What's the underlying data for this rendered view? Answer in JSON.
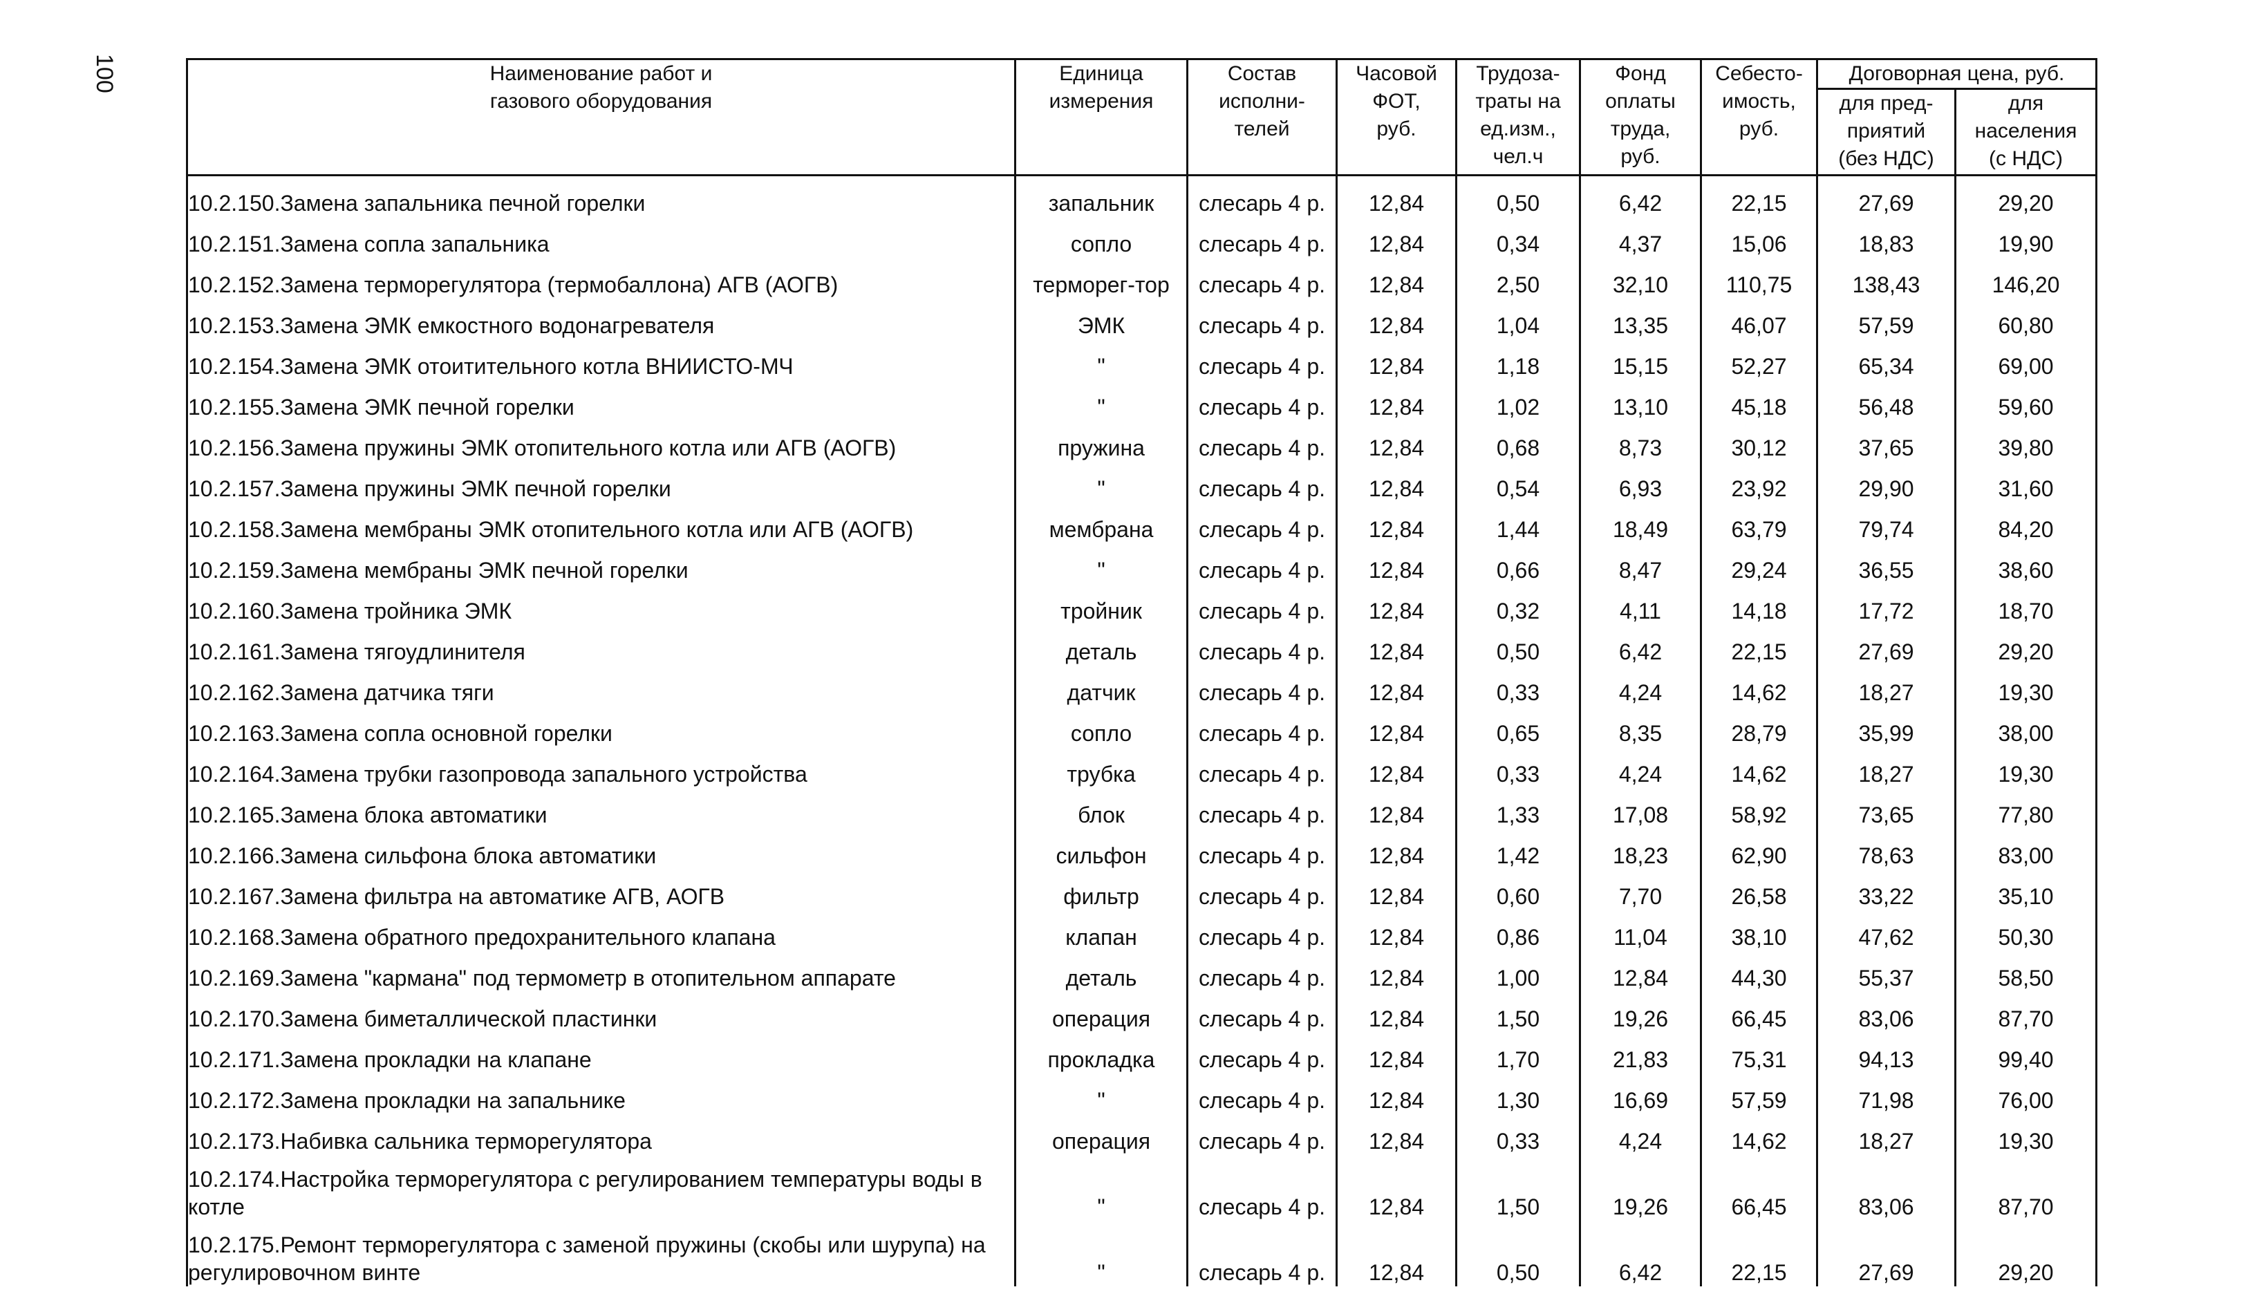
{
  "page_number": "100",
  "table": {
    "group_header": "Договорная цена, руб.",
    "headers": [
      [
        "Наименование работ и",
        "газового оборудования"
      ],
      [
        "Единица",
        "измерения"
      ],
      [
        "Состав",
        "исполни-",
        "телей"
      ],
      [
        "Часовой",
        "ФОТ,",
        "руб."
      ],
      [
        "Трудоза-",
        "траты на",
        "ед.изм.,",
        "чел.ч"
      ],
      [
        "Фонд",
        "оплаты",
        "труда,",
        "руб."
      ],
      [
        "Себесто-",
        "имость,",
        "руб."
      ],
      [
        "для пред-",
        "приятий",
        "(без НДС)"
      ],
      [
        "для",
        "населения",
        "(с НДС)"
      ]
    ],
    "rows": [
      [
        "10.2.150.",
        "Замена запальника печной горелки",
        "запальник",
        "слесарь 4 р.",
        "12,84",
        "0,50",
        "6,42",
        "22,15",
        "27,69",
        "29,20"
      ],
      [
        "10.2.151.",
        "Замена сопла запальника",
        "сопло",
        "слесарь 4 р.",
        "12,84",
        "0,34",
        "4,37",
        "15,06",
        "18,83",
        "19,90"
      ],
      [
        "10.2.152.",
        "Замена терморегулятора (термобаллона) АГВ (АОГВ)",
        "терморег-тор",
        "слесарь 4 р.",
        "12,84",
        "2,50",
        "32,10",
        "110,75",
        "138,43",
        "146,20"
      ],
      [
        "10.2.153.",
        "Замена ЭМК емкостного водонагревателя",
        "ЭМК",
        "слесарь 4 р.",
        "12,84",
        "1,04",
        "13,35",
        "46,07",
        "57,59",
        "60,80"
      ],
      [
        "10.2.154.",
        "Замена ЭМК отоитительного котла  ВНИИСТО-МЧ",
        "\"",
        "слесарь 4 р.",
        "12,84",
        "1,18",
        "15,15",
        "52,27",
        "65,34",
        "69,00"
      ],
      [
        "10.2.155.",
        "Замена ЭМК печной горелки",
        "\"",
        "слесарь 4 р.",
        "12,84",
        "1,02",
        "13,10",
        "45,18",
        "56,48",
        "59,60"
      ],
      [
        "10.2.156.",
        "Замена пружины ЭМК отопительного котла или АГВ (АОГВ)",
        "пружина",
        "слесарь 4 р.",
        "12,84",
        "0,68",
        "8,73",
        "30,12",
        "37,65",
        "39,80"
      ],
      [
        "10.2.157.",
        "Замена пружины ЭМК печной горелки",
        "\"",
        "слесарь 4 р.",
        "12,84",
        "0,54",
        "6,93",
        "23,92",
        "29,90",
        "31,60"
      ],
      [
        "10.2.158.",
        "Замена мембраны ЭМК отопительного котла или АГВ (АОГВ)",
        "мембрана",
        "слесарь 4 р.",
        "12,84",
        "1,44",
        "18,49",
        "63,79",
        "79,74",
        "84,20"
      ],
      [
        "10.2.159.",
        "Замена мембраны ЭМК печной горелки",
        "\"",
        "слесарь 4 р.",
        "12,84",
        "0,66",
        "8,47",
        "29,24",
        "36,55",
        "38,60"
      ],
      [
        "10.2.160.",
        "Замена тройника ЭМК",
        "тройник",
        "слесарь 4 р.",
        "12,84",
        "0,32",
        "4,11",
        "14,18",
        "17,72",
        "18,70"
      ],
      [
        "10.2.161.",
        "Замена тягоудлинителя",
        "деталь",
        "слесарь 4 р.",
        "12,84",
        "0,50",
        "6,42",
        "22,15",
        "27,69",
        "29,20"
      ],
      [
        "10.2.162.",
        "Замена датчика тяги",
        "датчик",
        "слесарь 4 р.",
        "12,84",
        "0,33",
        "4,24",
        "14,62",
        "18,27",
        "19,30"
      ],
      [
        "10.2.163.",
        "Замена сопла основной горелки",
        "сопло",
        "слесарь 4 р.",
        "12,84",
        "0,65",
        "8,35",
        "28,79",
        "35,99",
        "38,00"
      ],
      [
        "10.2.164.",
        "Замена трубки газопровода запального устройства",
        "трубка",
        "слесарь 4 р.",
        "12,84",
        "0,33",
        "4,24",
        "14,62",
        "18,27",
        "19,30"
      ],
      [
        "10.2.165.",
        "Замена блока автоматики",
        "блок",
        "слесарь 4 р.",
        "12,84",
        "1,33",
        "17,08",
        "58,92",
        "73,65",
        "77,80"
      ],
      [
        "10.2.166.",
        "Замена сильфона блока автоматики",
        "сильфон",
        "слесарь 4 р.",
        "12,84",
        "1,42",
        "18,23",
        "62,90",
        "78,63",
        "83,00"
      ],
      [
        "10.2.167.",
        "Замена  фильтра на автоматике  АГВ, АОГВ",
        "фильтр",
        "слесарь 4 р.",
        "12,84",
        "0,60",
        "7,70",
        "26,58",
        "33,22",
        "35,10"
      ],
      [
        "10.2.168.",
        "Замена обратного предохранительного клапана",
        "клапан",
        "слесарь 4 р.",
        "12,84",
        "0,86",
        "11,04",
        "38,10",
        "47,62",
        "50,30"
      ],
      [
        "10.2.169.",
        "Замена \"кармана\" под термометр в отопительном аппарате",
        "деталь",
        "слесарь 4 р.",
        "12,84",
        "1,00",
        "12,84",
        "44,30",
        "55,37",
        "58,50"
      ],
      [
        "10.2.170.",
        "Замена биметаллической пластинки",
        "операция",
        "слесарь 4 р.",
        "12,84",
        "1,50",
        "19,26",
        "66,45",
        "83,06",
        "87,70"
      ],
      [
        "10.2.171.",
        "Замена прокладки на клапане",
        "прокладка",
        "слесарь 4 р.",
        "12,84",
        "1,70",
        "21,83",
        "75,31",
        "94,13",
        "99,40"
      ],
      [
        "10.2.172.",
        "Замена прокладки на запальнике",
        "\"",
        "слесарь 4 р.",
        "12,84",
        "1,30",
        "16,69",
        "57,59",
        "71,98",
        "76,00"
      ],
      [
        "10.2.173.",
        "Набивка сальника терморегулятора",
        "операция",
        "слесарь 4 р.",
        "12,84",
        "0,33",
        "4,24",
        "14,62",
        "18,27",
        "19,30"
      ],
      [
        "10.2.174.",
        "Настройка терморегулятора с регулированием температуры воды в котле",
        "\"",
        "слесарь 4 р.",
        "12,84",
        "1,50",
        "19,26",
        "66,45",
        "83,06",
        "87,70"
      ],
      [
        "10.2.175.",
        "Ремонт терморегулятора с заменой пружины (скобы или шурупа) на регулировочном винте",
        "\"",
        "слесарь 4 р.",
        "12,84",
        "0,50",
        "6,42",
        "22,15",
        "27,69",
        "29,20"
      ]
    ]
  }
}
